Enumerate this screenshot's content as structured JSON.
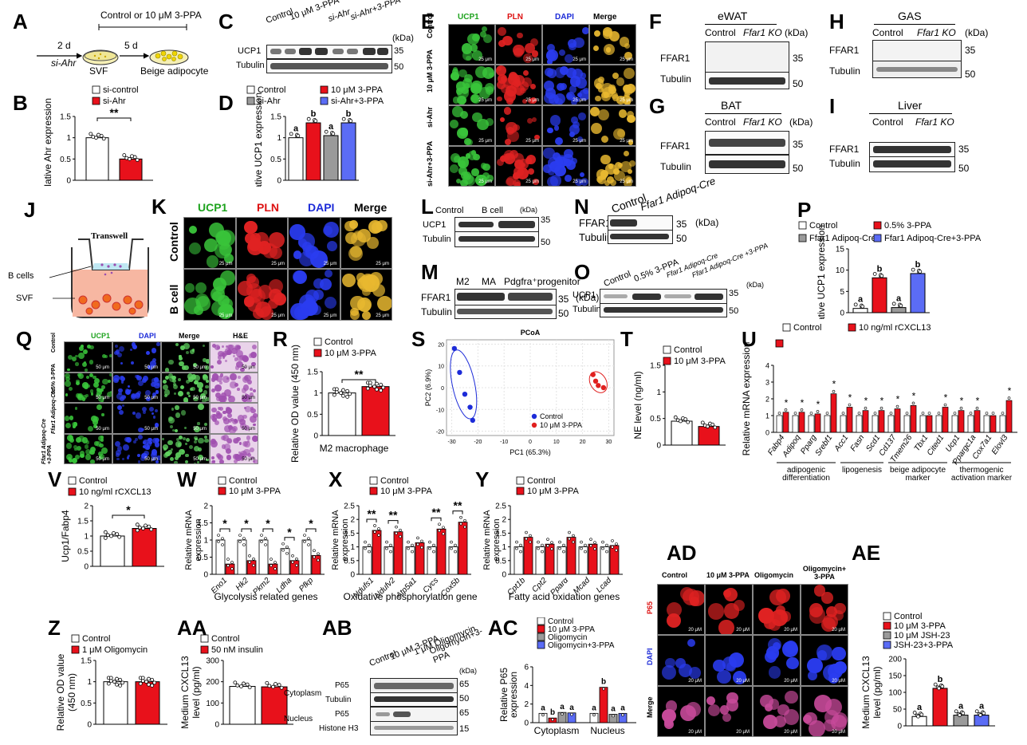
{
  "panels": {
    "A": {
      "letter": "A",
      "treatment": "Control or 10 μM 3-PPA",
      "step1": "2 d",
      "step1b": "si-Ahr",
      "step2": "5 d",
      "left": "SVF",
      "right": "Beige adipocyte"
    },
    "B": {
      "letter": "B",
      "legend": [
        "si-control",
        "si-Ahr"
      ],
      "ylabel": "Relative Ahr expression",
      "sig": "**",
      "chart_data": {
        "type": "bar",
        "categories": [
          "si-control",
          "si-Ahr"
        ],
        "values": [
          1.0,
          0.5
        ],
        "ylim": [
          0,
          1.5
        ],
        "yticks": [
          0.0,
          0.5,
          1.0,
          1.5
        ]
      }
    },
    "C": {
      "letter": "C",
      "lanes": [
        "Control",
        "10 μM 3-PPA",
        "si-Ahr",
        "si-Ahr+3-PPA"
      ],
      "rows": [
        "UCP1",
        "Tubulin"
      ],
      "kda_label": "(kDa)",
      "markers": [
        "35",
        "50"
      ]
    },
    "D": {
      "letter": "D",
      "legend": [
        "Control",
        "10 μM 3-PPA",
        "si-Ahr",
        "si-Ahr+3-PPA"
      ],
      "ylabel": "Relative UCP1 expression",
      "chart_data": {
        "type": "bar",
        "categories": [
          "Control",
          "10 μM 3-PPA",
          "si-Ahr",
          "si-Ahr+3-PPA"
        ],
        "values": [
          1.0,
          1.35,
          1.05,
          1.35
        ],
        "letters": [
          "a",
          "b",
          "a",
          "b"
        ],
        "ylim": [
          0,
          1.5
        ],
        "yticks": [
          0.0,
          0.5,
          1.0,
          1.5
        ]
      }
    },
    "E": {
      "letter": "E",
      "cols": [
        "UCP1",
        "PLN",
        "DAPI",
        "Merge"
      ],
      "rows": [
        "Control",
        "10 μM 3-PPA",
        "si-Ahr",
        "si-Ahr+3-PPA"
      ],
      "scale": "25 μm"
    },
    "F": {
      "letter": "F",
      "tissue": "eWAT",
      "groups": [
        "Control",
        "Ffar1 KO"
      ],
      "rows": [
        "FFAR1",
        "Tubulin"
      ],
      "kda_label": "(kDa)",
      "markers": [
        "35",
        "50"
      ]
    },
    "G": {
      "letter": "G",
      "tissue": "BAT",
      "groups": [
        "Control",
        "Ffar1 KO"
      ],
      "rows": [
        "FFAR1",
        "Tubulin"
      ],
      "kda_label": "(kDa)",
      "markers": [
        "35",
        "50"
      ]
    },
    "H": {
      "letter": "H",
      "tissue": "GAS",
      "groups": [
        "Control",
        "Ffar1 KO"
      ],
      "rows": [
        "FFAR1",
        "Tubulin"
      ],
      "kda_label": "(kDa)",
      "markers": [
        "35",
        "50"
      ]
    },
    "I": {
      "letter": "I",
      "tissue": "Liver",
      "groups": [
        "Control",
        "Ffar1 KO"
      ],
      "rows": [
        "FFAR1",
        "Tubulin"
      ],
      "kda_label": "(kDa)",
      "markers": [
        "35",
        "50"
      ]
    },
    "J": {
      "letter": "J",
      "transwell": "Transwell",
      "bcells": "B cells",
      "svf": "SVF"
    },
    "K": {
      "letter": "K",
      "cols": [
        "UCP1",
        "PLN",
        "DAPI",
        "Merge"
      ],
      "rows": [
        "Control",
        "B cell"
      ],
      "scale": "25 μm"
    },
    "L": {
      "letter": "L",
      "groups": [
        "Control",
        "B cell"
      ],
      "rows": [
        "UCP1",
        "Tubulin"
      ],
      "kda_label": "(kDa)",
      "markers": [
        "35",
        "50"
      ]
    },
    "M": {
      "letter": "M",
      "lanes": [
        "M2",
        "MA",
        "Pdgfra⁺progenitor"
      ],
      "rows": [
        "FFAR1",
        "Tubulin"
      ],
      "kda_label": "(kDa)",
      "markers": [
        "35",
        "50"
      ]
    },
    "N": {
      "letter": "N",
      "groups": [
        "Control",
        "Ffar1 Adipoq-Cre"
      ],
      "rows": [
        "FFAR1",
        "Tubulin"
      ],
      "kda_label": "(kDa)",
      "markers": [
        "35",
        "50"
      ]
    },
    "O": {
      "letter": "O",
      "lanes": [
        "Control",
        "0.5% 3-PPA",
        "Ffar1 Adipoq-Cre",
        "Ffar1 Adipoq-Cre +3-PPA"
      ],
      "rows": [
        "UCP1",
        "Tubulin"
      ],
      "kda_label": "(kDa)",
      "markers": [
        "35",
        "50"
      ]
    },
    "P": {
      "letter": "P",
      "legend": [
        "Control",
        "0.5% 3-PPA",
        "Ffar1 Adipoq-Cre",
        "Ffar1 Adipoq-Cre+3-PPA"
      ],
      "ylabel": "Relative UCP1 expression",
      "chart_data": {
        "type": "bar",
        "categories": [
          "Control",
          "0.5% 3-PPA",
          "Ffar1Adipoq-Cre",
          "Ffar1Adipoq-Cre+3-PPA"
        ],
        "values": [
          1.0,
          8.2,
          1.2,
          9.2
        ],
        "letters": [
          "a",
          "b",
          "a",
          "b"
        ],
        "ylim": [
          0,
          15
        ],
        "yticks": [
          0,
          5,
          10,
          15
        ]
      }
    },
    "Q": {
      "letter": "Q",
      "cols": [
        "UCP1",
        "DAPI",
        "Merge",
        "H&E"
      ],
      "rows": [
        "Control",
        "0.5% 3-PPA",
        "Ffar1 Adipoq-Cre",
        "Ffar1 Adipoq-Cre +3-PPA"
      ],
      "scale": "50 μm"
    },
    "R": {
      "letter": "R",
      "legend": [
        "Control",
        "10 μM 3-PPA"
      ],
      "ylabel": "Relative OD value (450 nm)",
      "xlabel": "M2 macrophage",
      "sig": "**",
      "chart_data": {
        "type": "bar",
        "categories": [
          "Control",
          "10 μM 3-PPA"
        ],
        "values": [
          1.0,
          1.15
        ],
        "ylim": [
          0,
          1.5
        ],
        "yticks": [
          0.0,
          0.5,
          1.0,
          1.5
        ]
      }
    },
    "S": {
      "letter": "S",
      "title": "PCoA",
      "xlabel": "PC1 (65.3%)",
      "ylabel": "PC2 (6.9%)",
      "legend": [
        "Control",
        "10 μM 3-PPA"
      ],
      "chart_data": {
        "type": "scatter",
        "xlim": [
          -32,
          32
        ],
        "ylim": [
          -22,
          22
        ],
        "xticks": [
          -30,
          -20,
          -10,
          0,
          10,
          20,
          30
        ],
        "yticks": [
          -20,
          -10,
          0,
          10,
          20
        ],
        "series": [
          {
            "name": "Control",
            "points": [
              [
                -29,
                18
              ],
              [
                -27,
                7
              ],
              [
                -25,
                -3
              ],
              [
                -23,
                -9
              ],
              [
                -22,
                -15
              ]
            ]
          },
          {
            "name": "10 μM 3-PPA",
            "points": [
              [
                24,
                6
              ],
              [
                25,
                3
              ],
              [
                26,
                1
              ],
              [
                28,
                0
              ]
            ]
          }
        ]
      }
    },
    "T": {
      "letter": "T",
      "legend": [
        "Control",
        "10 μM 3-PPA"
      ],
      "ylabel": "NE level (ng/ml)",
      "chart_data": {
        "type": "bar",
        "categories": [
          "Control",
          "10 μM 3-PPA"
        ],
        "values": [
          0.45,
          0.35
        ],
        "ylim": [
          0,
          1.5
        ],
        "yticks": [
          0.0,
          0.5,
          1.0,
          1.5
        ]
      }
    },
    "U": {
      "letter": "U",
      "legend": [
        "Control",
        "10 ng/ml rCXCL13"
      ],
      "ylabel": "Relative mRNA expression",
      "groups": [
        "adipogenic differentiation",
        "lipogenesis",
        "beige adipocyte marker",
        "thermogenic activation marker"
      ],
      "chart_data": {
        "type": "bar",
        "categories": [
          "Fabp4",
          "Adipoq",
          "Pparg",
          "Srebf1",
          "Acc1",
          "Fasn",
          "Scd1",
          "Cd137",
          "Tmem26",
          "Tbx1",
          "Cited1",
          "Ucp1",
          "Ppargc1a",
          "Cox7a1",
          "Elovl3"
        ],
        "series": [
          {
            "name": "Control",
            "values": [
              1,
              1,
              1,
              1,
              1,
              1,
              1,
              1,
              1,
              1,
              1,
              1,
              1,
              1,
              1
            ]
          },
          {
            "name": "10 ng/ml rCXCL13",
            "values": [
              1.2,
              1.2,
              1.1,
              2.3,
              1.5,
              1.3,
              1.3,
              1.4,
              1.6,
              1.0,
              1.5,
              1.3,
              1.3,
              1.0,
              1.9
            ]
          }
        ],
        "stars": [
          1,
          1,
          1,
          1,
          1,
          1,
          1,
          1,
          1,
          0,
          1,
          1,
          1,
          0,
          1
        ],
        "ylim": [
          0,
          4
        ],
        "yticks": [
          0,
          1,
          2,
          3,
          4
        ]
      }
    },
    "V": {
      "letter": "V",
      "legend": [
        "Control",
        "10 ng/ml rCXCL13"
      ],
      "ylabel": "Ucp1/Fabp4",
      "sig": "*",
      "chart_data": {
        "type": "bar",
        "categories": [
          "Control",
          "10 ng/ml rCXCL13"
        ],
        "values": [
          1.0,
          1.25
        ],
        "ylim": [
          0,
          2.0
        ],
        "yticks": [
          0.0,
          0.5,
          1.0,
          1.5,
          2.0
        ]
      }
    },
    "W": {
      "letter": "W",
      "legend": [
        "Control",
        "10 μM 3-PPA"
      ],
      "ylabel": "Relative mRNA expression",
      "xlabel": "Glycolysis related genes",
      "chart_data": {
        "type": "bar",
        "categories": [
          "Eno1",
          "Hk2",
          "Pkm2",
          "Ldha",
          "Pfkp"
        ],
        "series": [
          {
            "name": "Control",
            "values": [
              1.0,
              1.0,
              1.0,
              0.75,
              1.0
            ]
          },
          {
            "name": "10 μM 3-PPA",
            "values": [
              0.3,
              0.4,
              0.3,
              0.4,
              0.55
            ]
          }
        ],
        "stars": [
          "*",
          "*",
          "*",
          "*",
          "*"
        ],
        "ylim": [
          0,
          2.0
        ],
        "yticks": [
          0.0,
          0.5,
          1.0,
          1.5,
          2.0
        ]
      }
    },
    "X": {
      "letter": "X",
      "legend": [
        "Control",
        "10 μM 3-PPA"
      ],
      "ylabel": "Relative mRNA expression",
      "xlabel": "Oxidative phosphorylation genes",
      "chart_data": {
        "type": "bar",
        "categories": [
          "Ndufs1",
          "Ndufv2",
          "Atp5a1",
          "Cycs",
          "Cox5b"
        ],
        "series": [
          {
            "name": "Control",
            "values": [
              1.0,
              1.0,
              1.0,
              1.0,
              1.0
            ]
          },
          {
            "name": "10 μM 3-PPA",
            "values": [
              1.6,
              1.55,
              1.15,
              1.65,
              1.9
            ]
          }
        ],
        "stars": [
          "**",
          "**",
          "",
          "**",
          "**"
        ],
        "ylim": [
          0,
          2.5
        ],
        "yticks": [
          0.0,
          0.5,
          1.0,
          1.5,
          2.0,
          2.5
        ]
      }
    },
    "Y": {
      "letter": "Y",
      "legend": [
        "Control",
        "10 μM 3-PPA"
      ],
      "ylabel": "Relative mRNA expression",
      "xlabel": "Fatty acid oxidation genes",
      "chart_data": {
        "type": "bar",
        "categories": [
          "Cpt1b",
          "Cpt2",
          "Pparα",
          "Mcad",
          "Lcad"
        ],
        "series": [
          {
            "name": "Control",
            "values": [
              1.0,
              1.0,
              1.0,
              1.0,
              1.0
            ]
          },
          {
            "name": "10 μM 3-PPA",
            "values": [
              1.35,
              1.1,
              1.35,
              1.1,
              1.05
            ]
          }
        ],
        "ylim": [
          0,
          2.5
        ],
        "yticks": [
          0.0,
          0.5,
          1.0,
          1.5,
          2.0,
          2.5
        ]
      }
    },
    "Z": {
      "letter": "Z",
      "legend": [
        "Control",
        "1 μM Oligomycin"
      ],
      "ylabel": "Relative OD value (450 nm)",
      "chart_data": {
        "type": "bar",
        "categories": [
          "Control",
          "1 μM Oligomycin"
        ],
        "values": [
          1.0,
          1.0
        ],
        "ylim": [
          0,
          1.5
        ],
        "yticks": [
          0.0,
          0.5,
          1.0,
          1.5
        ]
      }
    },
    "AA": {
      "letter": "AA",
      "legend": [
        "Control",
        "50 nM insulin"
      ],
      "ylabel": "Medium CXCL13 level (pg/ml)",
      "chart_data": {
        "type": "bar",
        "categories": [
          "Control",
          "50 nM insulin"
        ],
        "values": [
          178,
          176
        ],
        "ylim": [
          0,
          300
        ],
        "yticks": [
          0,
          100,
          200,
          300
        ]
      }
    },
    "AB": {
      "letter": "AB",
      "lanes": [
        "Control",
        "10 μM 3-PPA",
        "1 μM Oligomycin",
        "Oligomycin+3-PPA"
      ],
      "fractions": [
        "Cytoplasm",
        "Nucleus"
      ],
      "rows": [
        "P65",
        "Tubulin",
        "P65",
        "Histone H3"
      ],
      "kda_label": "(kDa)",
      "markers": [
        "65",
        "50",
        "65",
        "15"
      ]
    },
    "AC": {
      "letter": "AC",
      "legend": [
        "Control",
        "10 μM 3-PPA",
        "Oligomycin",
        "Oligomycin+3-PPA"
      ],
      "ylabel": "Relative P65 expression",
      "groups": [
        "Cytoplasm",
        "Nucleus"
      ],
      "chart_data": {
        "type": "bar",
        "categories": [
          "Cytoplasm",
          "Nucleus"
        ],
        "series": [
          {
            "name": "Control",
            "values": [
              1.0,
              1.0
            ]
          },
          {
            "name": "10 μM 3-PPA",
            "values": [
              0.5,
              3.8
            ]
          },
          {
            "name": "Oligomycin",
            "values": [
              1.1,
              0.9
            ]
          },
          {
            "name": "Oligomycin+3-PPA",
            "values": [
              1.05,
              1.0
            ]
          }
        ],
        "letters": [
          [
            "a",
            "b",
            "a",
            "a"
          ],
          [
            "a",
            "b",
            "a",
            "a"
          ]
        ],
        "ylim": [
          0,
          6
        ],
        "yticks": [
          0,
          2,
          4,
          6
        ]
      }
    },
    "AD": {
      "letter": "AD",
      "cols": [
        "Control",
        "10 μM 3-PPA",
        "Oligomycin",
        "Oligomycin+ 3-PPA"
      ],
      "rows": [
        "P65",
        "DAPI",
        "Merge"
      ],
      "scale": "20 μM"
    },
    "AE": {
      "letter": "AE",
      "legend": [
        "Control",
        "10 μM 3-PPA",
        "10 μM JSH-23",
        "JSH-23+3-PPA"
      ],
      "ylabel": "Medium CXCL13 level (pg/ml)",
      "chart_data": {
        "type": "bar",
        "categories": [
          "Control",
          "10 μM 3-PPA",
          "10 μM JSH-23",
          "JSH-23+3-PPA"
        ],
        "values": [
          28,
          112,
          32,
          32
        ],
        "letters": [
          "a",
          "b",
          "a",
          "a"
        ],
        "ylim": [
          0,
          200
        ],
        "yticks": [
          0,
          50,
          100,
          150,
          200
        ]
      }
    }
  },
  "colors": {
    "control": "#ffffff",
    "treat": "#e8111b",
    "grey": "#9a9a9a",
    "blue": "#5b6cf5",
    "green": "#32b23a",
    "red": "#e0201f",
    "dapi": "#1c2bd8"
  }
}
